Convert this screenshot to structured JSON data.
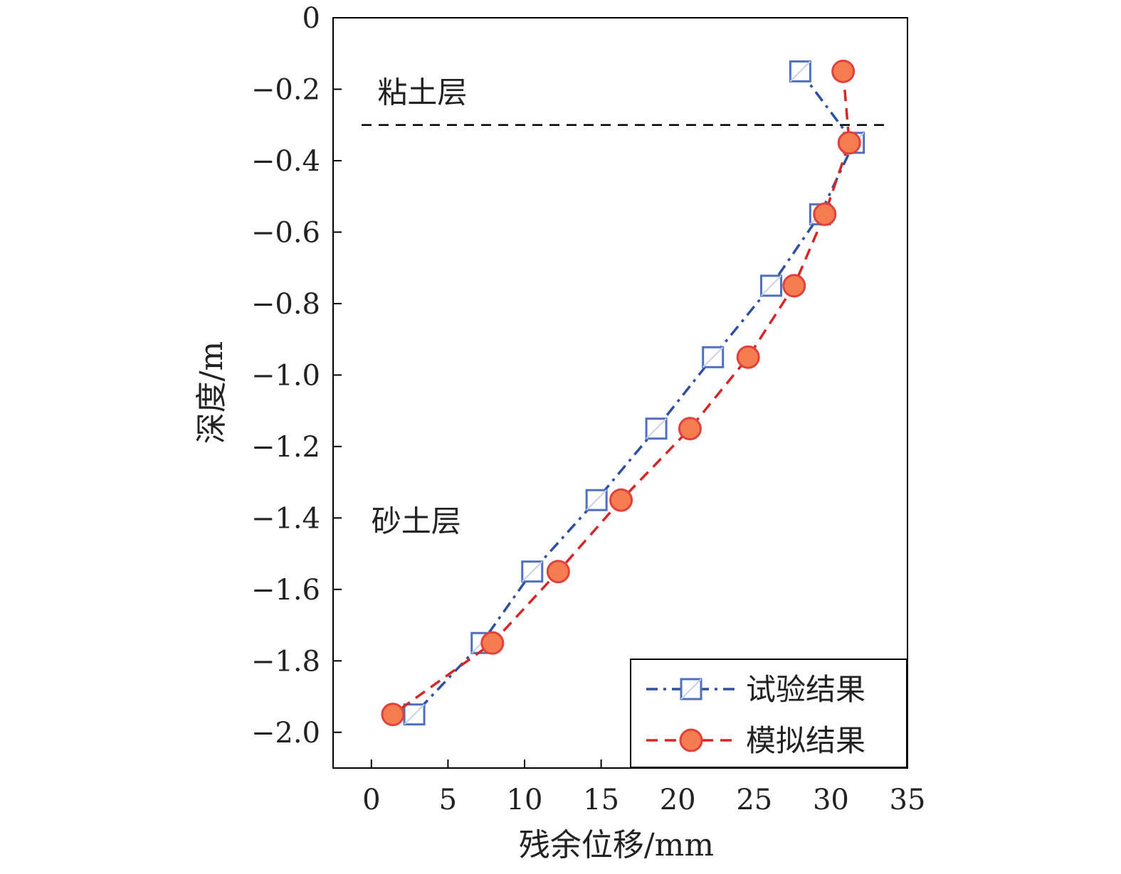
{
  "chart_data": {
    "type": "line",
    "xlabel": "残余位移/mm",
    "ylabel": "深度/m",
    "xlim": [
      -2.5,
      35
    ],
    "ylim": [
      -2.1,
      0
    ],
    "xticks": [
      0,
      5,
      10,
      15,
      20,
      25,
      30,
      35
    ],
    "yticks": [
      0,
      -0.2,
      -0.4,
      -0.6,
      -0.8,
      -1.0,
      -1.2,
      -1.4,
      -1.6,
      -1.8,
      -2.0
    ],
    "ytick_labels": [
      "0",
      "−0.2",
      "−0.4",
      "−0.6",
      "−0.8",
      "−1.0",
      "−1.2",
      "−1.4",
      "−1.6",
      "−1.8",
      "−2.0"
    ],
    "grid": false,
    "legend_position": "bottom-right",
    "boundary_line": {
      "y": -0.3,
      "style": "dashed",
      "color": "#000000"
    },
    "annotations": [
      {
        "text": "粘土层",
        "x": 0.4,
        "y": -0.21
      },
      {
        "text": "砂土层",
        "x": 0.0,
        "y": -1.41
      }
    ],
    "series": [
      {
        "name": "试验结果",
        "marker": "square",
        "line_style": "dash-dot",
        "color": "#2f4fa3",
        "marker_edge": "#4f6fbf",
        "points": [
          {
            "x": 28.0,
            "y": -0.15
          },
          {
            "x": 31.5,
            "y": -0.35
          },
          {
            "x": 29.3,
            "y": -0.55
          },
          {
            "x": 26.1,
            "y": -0.75
          },
          {
            "x": 22.3,
            "y": -0.95
          },
          {
            "x": 18.6,
            "y": -1.15
          },
          {
            "x": 14.7,
            "y": -1.35
          },
          {
            "x": 10.5,
            "y": -1.55
          },
          {
            "x": 7.2,
            "y": -1.75
          },
          {
            "x": 2.8,
            "y": -1.95
          }
        ]
      },
      {
        "name": "模拟结果",
        "marker": "circle",
        "line_style": "dashed",
        "color": "#d62728",
        "marker_fill": "#f47c4f",
        "marker_edge": "#e0413a",
        "points": [
          {
            "x": 30.8,
            "y": -0.15
          },
          {
            "x": 31.2,
            "y": -0.35
          },
          {
            "x": 29.6,
            "y": -0.55
          },
          {
            "x": 27.6,
            "y": -0.75
          },
          {
            "x": 24.6,
            "y": -0.95
          },
          {
            "x": 20.8,
            "y": -1.15
          },
          {
            "x": 16.3,
            "y": -1.35
          },
          {
            "x": 12.2,
            "y": -1.55
          },
          {
            "x": 7.9,
            "y": -1.75
          },
          {
            "x": 1.4,
            "y": -1.95
          }
        ]
      }
    ]
  }
}
